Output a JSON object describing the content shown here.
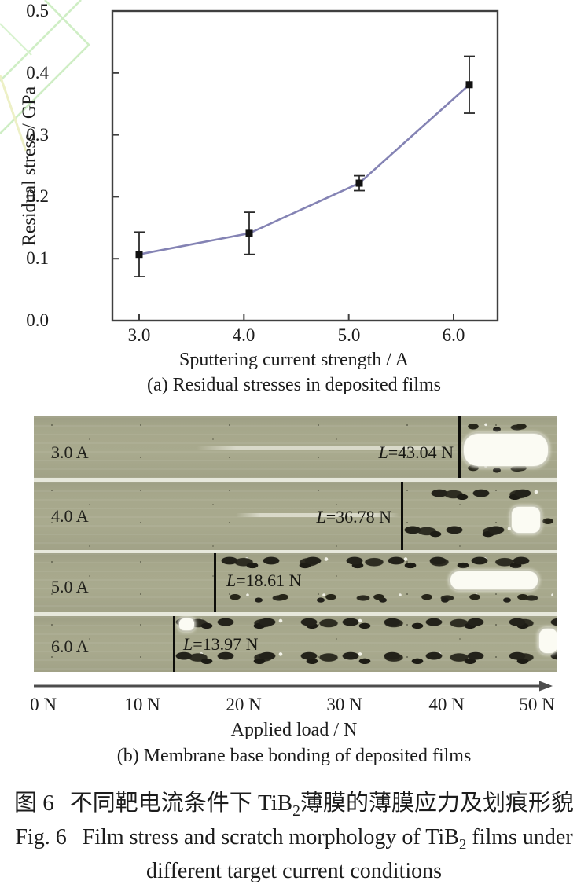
{
  "colors": {
    "watermark_green": "#cfeec5",
    "watermark_pale": "#edf0c6",
    "axis_stroke": "#3f3f3f",
    "film_base": "#a5a68a",
    "arrow": "#4d4d4d"
  },
  "chart_data": {
    "type": "line",
    "title": "",
    "xlabel": "Sputtering current strength / A",
    "ylabel": "Residual stress / GPa",
    "caption": "(a) Residual stresses in deposited films",
    "x": [
      3.0,
      4.05,
      5.1,
      6.15
    ],
    "y": [
      0.107,
      0.141,
      0.222,
      0.381
    ],
    "yerr": [
      0.036,
      0.034,
      0.012,
      0.046
    ],
    "xlim": [
      2.745,
      6.42
    ],
    "ylim": [
      0.0,
      0.5
    ],
    "xticks": [
      3.0,
      4.0,
      5.0,
      6.0
    ],
    "xtick_labels": [
      "3.0",
      "4.0",
      "5.0",
      "6.0"
    ],
    "yticks": [
      0.0,
      0.1,
      0.2,
      0.3,
      0.4,
      0.5
    ],
    "ytick_labels": [
      "0.0",
      "0.1",
      "0.2",
      "0.3",
      "0.4",
      "0.5"
    ],
    "line_color": "#8483b4",
    "marker": "square",
    "marker_color": "#111111",
    "grid": false
  },
  "panel_b": {
    "caption": "(b) Membrane base bonding of deposited films",
    "axis_label": "Applied load / N",
    "axis_ticks": [
      "0 N",
      "10 N",
      "20 N",
      "30 N",
      "40 N",
      "50 N"
    ],
    "strips": [
      {
        "label": "3.0 A",
        "load_symbol": "L",
        "load_text": "=43.04 N",
        "critical_load_N": 43.04
      },
      {
        "label": "4.0 A",
        "load_symbol": "L",
        "load_text": "=36.78 N",
        "critical_load_N": 36.78
      },
      {
        "label": "5.0 A",
        "load_symbol": "L",
        "load_text": "=18.61 N",
        "critical_load_N": 18.61
      },
      {
        "label": "6.0 A",
        "load_symbol": "L",
        "load_text": "=13.97 N",
        "critical_load_N": 13.97
      }
    ]
  },
  "caption_zh": {
    "prefix": "图 6",
    "text_pre": "不同靶电流条件下 TiB",
    "subscript": "2",
    "text_post": "薄膜的薄膜应力及划痕形貌"
  },
  "caption_en": {
    "prefix": "Fig. 6",
    "line1_pre": "Film stress and scratch morphology of TiB",
    "subscript": "2",
    "line1_post": " films under",
    "line2": "different target current conditions"
  }
}
